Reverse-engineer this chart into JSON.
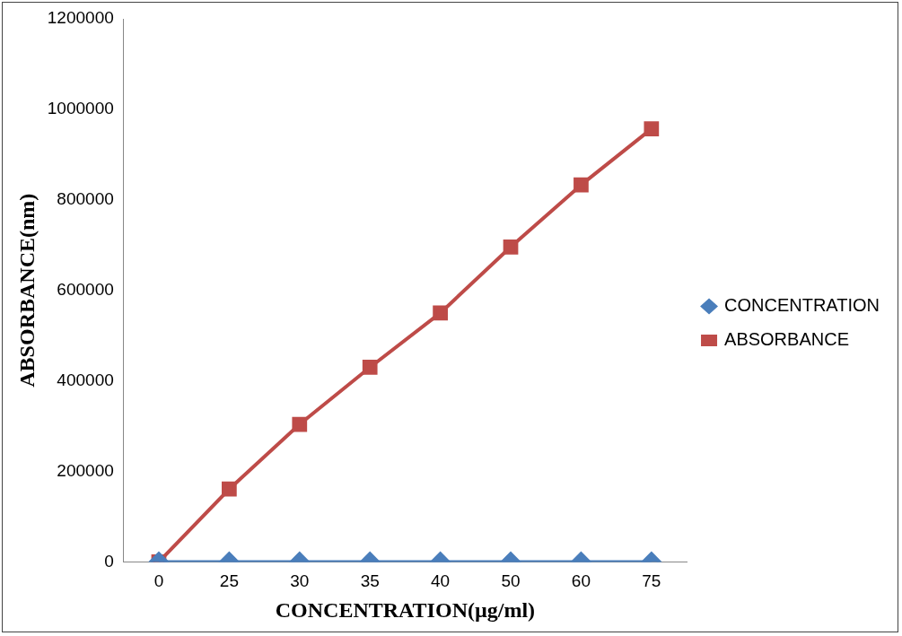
{
  "chart_data": {
    "type": "line",
    "xlabel": "CONCENTRATION(µg/ml)",
    "ylabel": "ABSORBANCE(nm)",
    "categories": [
      "0",
      "25",
      "30",
      "35",
      "40",
      "50",
      "60",
      "75"
    ],
    "series": [
      {
        "name": "CONCENTRATION",
        "color": "#4a7ebb",
        "marker": "diamond",
        "values": [
          0,
          0,
          0,
          0,
          0,
          0,
          0,
          0
        ]
      },
      {
        "name": "ABSORBANCE",
        "color": "#be4b48",
        "marker": "square",
        "values": [
          0,
          161000,
          304000,
          430000,
          550000,
          696000,
          833000,
          957000
        ]
      }
    ],
    "ylim": [
      0,
      1200000
    ],
    "yticks": [
      0,
      200000,
      400000,
      600000,
      800000,
      1000000,
      1200000
    ],
    "grid": false,
    "legend": "right"
  }
}
